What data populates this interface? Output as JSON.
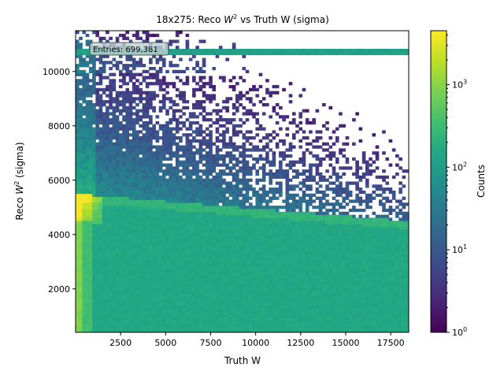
{
  "chart_data": {
    "type": "heatmap",
    "title_prefix": "18x275: Reco ",
    "title_w": "W",
    "title_sup": "2",
    "title_suffix": " vs Truth W (sigma)",
    "xlabel": "Truth W",
    "ylabel_prefix": "Reco ",
    "ylabel_w": "W",
    "ylabel_sup": "2",
    "ylabel_suffix": " (sigma)",
    "xlim": [
      0,
      18500
    ],
    "ylim": [
      400,
      11500
    ],
    "x_ticks": [
      2500,
      5000,
      7500,
      10000,
      12500,
      15000,
      17500
    ],
    "x_tick_labels": [
      "2500",
      "5000",
      "7500",
      "10000",
      "12500",
      "15000",
      "17500"
    ],
    "y_ticks": [
      2000,
      4000,
      6000,
      8000,
      10000
    ],
    "y_tick_labels": [
      "2000",
      "4000",
      "6000",
      "8000",
      "10000"
    ],
    "entries_label": "Entries: 699,381",
    "colorbar": {
      "label": "Counts",
      "scale": "log",
      "range": [
        1,
        4500
      ],
      "ticks": [
        1,
        10,
        100,
        1000
      ],
      "tick_base": "10",
      "tick_exponents": [
        "0",
        "1",
        "2",
        "3"
      ],
      "colormap": "viridis"
    },
    "features": {
      "band_edge_at_x0": 5500,
      "band_edge_at_xmax": 4500,
      "horizontal_line_y": 10750,
      "cut_line_y": 9900,
      "peak_counts": 4000,
      "lower_region_counts": 150
    }
  }
}
